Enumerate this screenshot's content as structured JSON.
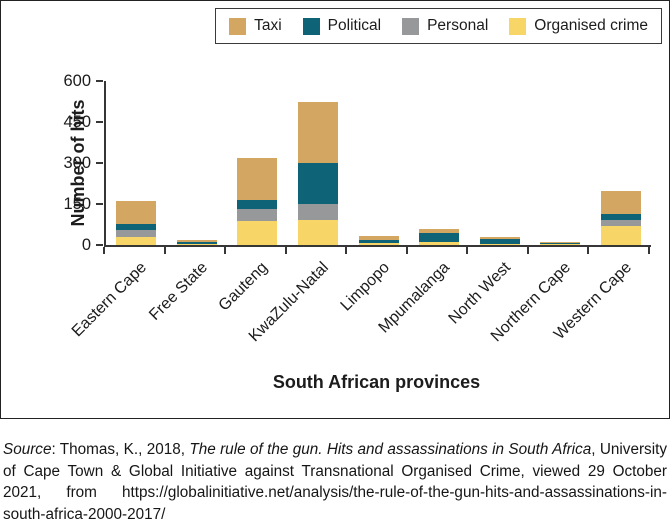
{
  "legend": {
    "items": [
      {
        "label": "Taxi",
        "color": "#d3a662"
      },
      {
        "label": "Political",
        "color": "#0f6377"
      },
      {
        "label": "Personal",
        "color": "#97989a"
      },
      {
        "label": "Organised crime",
        "color": "#f8d567"
      }
    ]
  },
  "chart_data": {
    "type": "bar",
    "subtype": "stacked",
    "title": "",
    "categories": [
      "Eastern Cape",
      "Free State",
      "Gauteng",
      "KwaZulu-Natal",
      "Limpopo",
      "Mpumalanga",
      "North West",
      "Northern Cape",
      "Western Cape"
    ],
    "series": [
      {
        "name": "Organised crime",
        "color": "#f8d567",
        "values": [
          30,
          4,
          87,
          90,
          6,
          12,
          5,
          4,
          70
        ]
      },
      {
        "name": "Personal",
        "color": "#97989a",
        "values": [
          25,
          0,
          45,
          60,
          0,
          0,
          0,
          0,
          22
        ]
      },
      {
        "name": "Political",
        "color": "#0f6377",
        "values": [
          22,
          6,
          33,
          150,
          14,
          32,
          17,
          4,
          22
        ]
      },
      {
        "name": "Taxi",
        "color": "#d3a662",
        "values": [
          84,
          10,
          155,
          225,
          14,
          16,
          8,
          2,
          82
        ]
      }
    ],
    "stack_order_bottom_to_top": [
      "Organised crime",
      "Personal",
      "Political",
      "Taxi"
    ],
    "legend_order": [
      "Taxi",
      "Political",
      "Personal",
      "Organised crime"
    ],
    "xlabel": "South African provinces",
    "ylabel": "Number of hits",
    "yticks": [
      0,
      150,
      300,
      450,
      600
    ],
    "ylim": [
      0,
      600
    ],
    "grid": false,
    "legend_position": "top-right"
  },
  "source": {
    "segments": [
      {
        "text": "Source",
        "italic": true
      },
      {
        "text": ": Thomas, K., 2018, ",
        "italic": false
      },
      {
        "text": "The rule of the gun. Hits and assassinations in South Africa",
        "italic": true
      },
      {
        "text": ", University of Cape Town & Global Initiative against Transnational Organised Crime, viewed 29 October 2021, from https://globalinitiative.net/analysis/the-rule-of-the-gun-hits-and-assassinations-in-south-africa-2000-2017/",
        "italic": false
      }
    ]
  }
}
